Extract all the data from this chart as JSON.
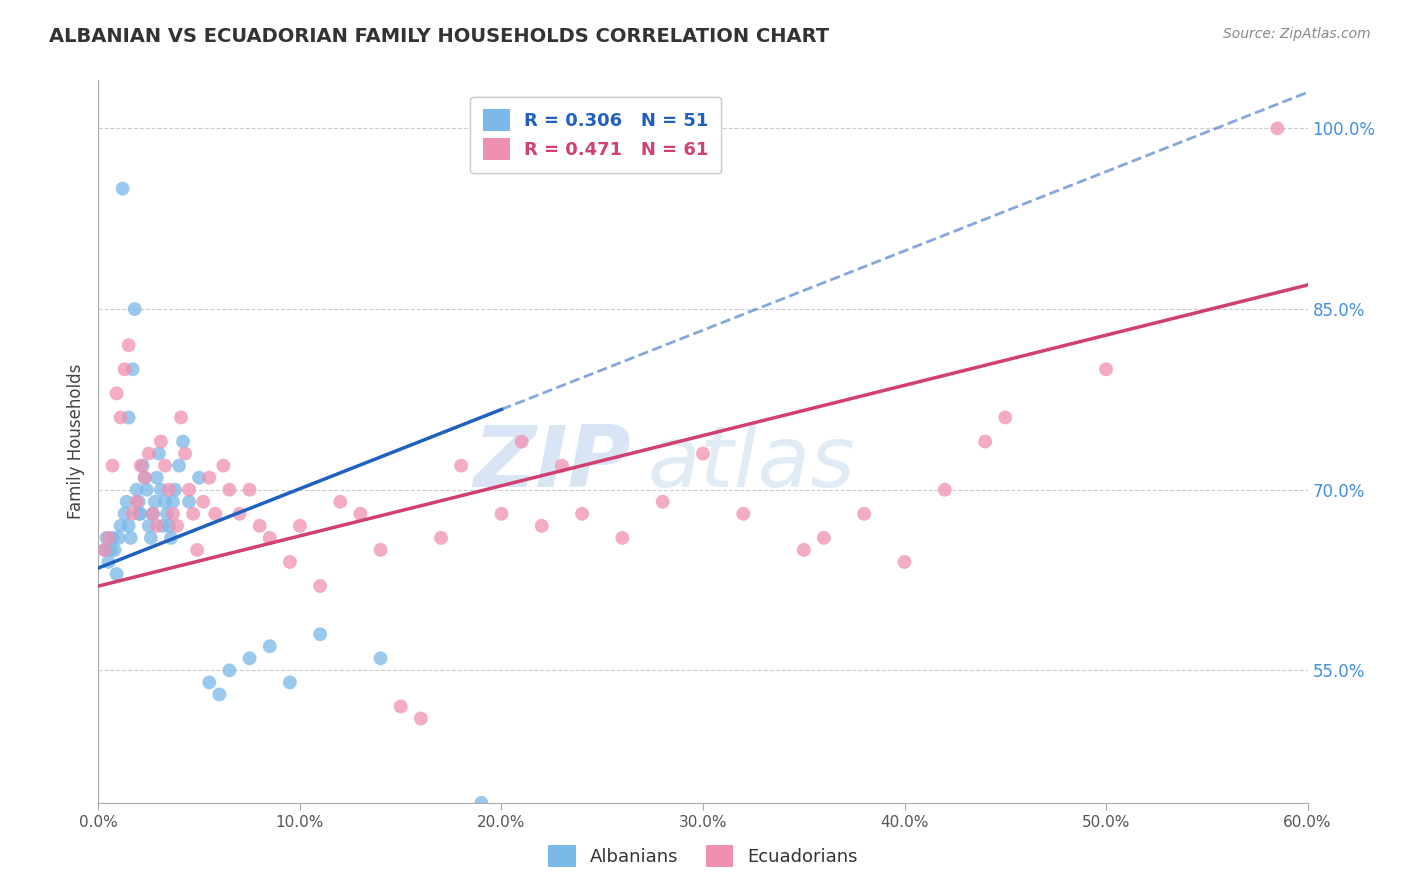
{
  "title": "ALBANIAN VS ECUADORIAN FAMILY HOUSEHOLDS CORRELATION CHART",
  "source": "Source: ZipAtlas.com",
  "ylabel": "Family Households",
  "xlim": [
    0.0,
    60.0
  ],
  "ylim": [
    44.0,
    104.0
  ],
  "yticks": [
    55.0,
    70.0,
    85.0,
    100.0
  ],
  "xticks": [
    0.0,
    10.0,
    20.0,
    30.0,
    40.0,
    50.0,
    60.0
  ],
  "albanian_R": 0.306,
  "albanian_N": 51,
  "ecuadorian_R": 0.471,
  "ecuadorian_N": 61,
  "albanian_color": "#7ab8e8",
  "ecuadorian_color": "#f090b0",
  "albanian_line_color": "#2060c0",
  "ecuadorian_line_color": "#d04070",
  "right_axis_color": "#4090e0",
  "watermark_zip": "ZIP",
  "watermark_atlas": "atlas",
  "albanian_line_x0": 0.0,
  "albanian_line_y0": 63.5,
  "albanian_line_x1": 60.0,
  "albanian_line_y1": 103.0,
  "albanian_solid_end": 20.0,
  "ecuadorian_line_x0": 0.0,
  "ecuadorian_line_y0": 62.0,
  "ecuadorian_line_x1": 60.0,
  "ecuadorian_line_y1": 87.0,
  "albanian_x": [
    0.3,
    0.4,
    0.5,
    0.6,
    0.7,
    0.8,
    0.9,
    1.0,
    1.1,
    1.2,
    1.3,
    1.4,
    1.5,
    1.6,
    1.7,
    1.8,
    1.9,
    2.0,
    2.1,
    2.2,
    2.3,
    2.4,
    2.5,
    2.6,
    2.7,
    2.8,
    2.9,
    3.0,
    3.1,
    3.2,
    3.3,
    3.4,
    3.5,
    3.6,
    3.7,
    3.8,
    4.0,
    4.2,
    4.5,
    5.0,
    5.5,
    6.0,
    6.5,
    7.5,
    8.5,
    9.5,
    11.0,
    14.0,
    19.0,
    2.0,
    1.5
  ],
  "albanian_y": [
    65,
    66,
    64,
    65,
    66,
    65,
    63,
    66,
    67,
    95,
    68,
    69,
    67,
    66,
    80,
    85,
    70,
    69,
    68,
    72,
    71,
    70,
    67,
    66,
    68,
    69,
    71,
    73,
    70,
    67,
    69,
    68,
    67,
    66,
    69,
    70,
    72,
    74,
    69,
    71,
    54,
    53,
    55,
    56,
    57,
    54,
    58,
    56,
    44,
    68,
    76
  ],
  "ecuadorian_x": [
    0.3,
    0.5,
    0.7,
    0.9,
    1.1,
    1.3,
    1.5,
    1.7,
    1.9,
    2.1,
    2.3,
    2.5,
    2.7,
    2.9,
    3.1,
    3.3,
    3.5,
    3.7,
    3.9,
    4.1,
    4.3,
    4.5,
    4.7,
    4.9,
    5.2,
    5.5,
    5.8,
    6.2,
    6.5,
    7.0,
    7.5,
    8.0,
    8.5,
    9.5,
    10.0,
    11.0,
    12.0,
    13.0,
    14.0,
    15.0,
    16.0,
    17.0,
    18.0,
    20.0,
    21.0,
    22.0,
    23.0,
    24.0,
    26.0,
    28.0,
    30.0,
    32.0,
    35.0,
    36.0,
    38.0,
    40.0,
    42.0,
    44.0,
    45.0,
    50.0,
    58.5
  ],
  "ecuadorian_y": [
    65,
    66,
    72,
    78,
    76,
    80,
    82,
    68,
    69,
    72,
    71,
    73,
    68,
    67,
    74,
    72,
    70,
    68,
    67,
    76,
    73,
    70,
    68,
    65,
    69,
    71,
    68,
    72,
    70,
    68,
    70,
    67,
    66,
    64,
    67,
    62,
    69,
    68,
    65,
    52,
    51,
    66,
    72,
    68,
    74,
    67,
    72,
    68,
    66,
    69,
    73,
    68,
    65,
    66,
    68,
    64,
    70,
    74,
    76,
    80,
    100
  ]
}
